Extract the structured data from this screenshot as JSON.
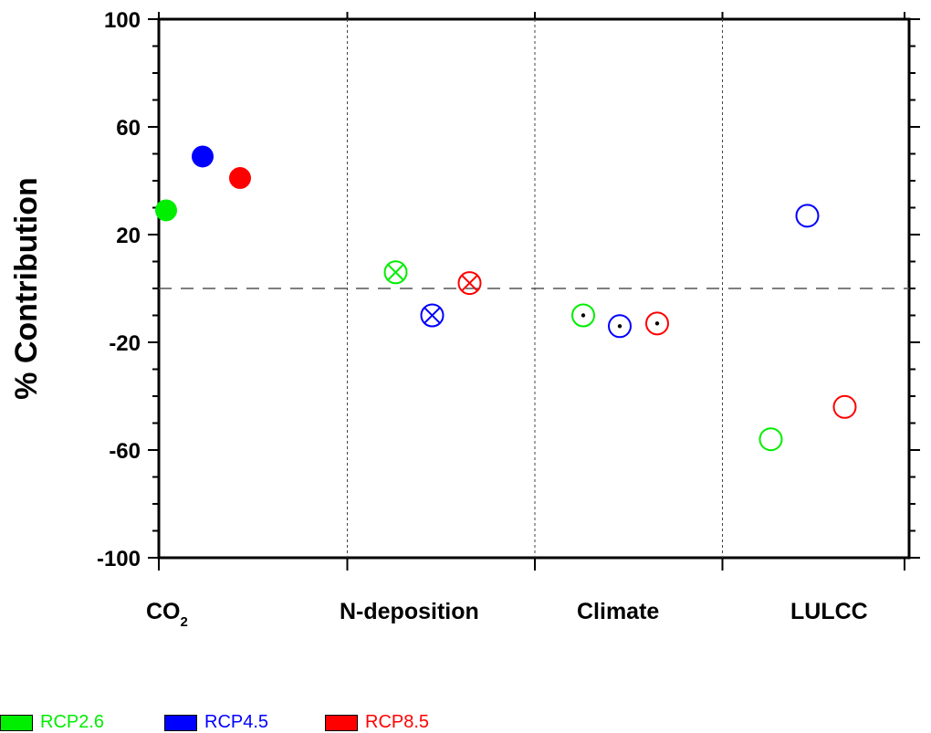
{
  "chart_data": {
    "type": "scatter",
    "title": "",
    "xlabel": "",
    "ylabel": "% Contribution",
    "ylim": [
      -100,
      100
    ],
    "yticks": [
      "100",
      "60",
      "20",
      "-20",
      "-60",
      "-100"
    ],
    "categories": [
      {
        "main": "CO",
        "sub": "2"
      },
      {
        "main": "N-deposition",
        "sub": ""
      },
      {
        "main": "Climate",
        "sub": ""
      },
      {
        "main": "LULCC",
        "sub": ""
      }
    ],
    "zero_line": "dashed",
    "category_separators": "dotted",
    "series": [
      {
        "name": "RCP2.6",
        "color": "#00ee00",
        "values": [
          29,
          6,
          -10,
          -56
        ]
      },
      {
        "name": "RCP4.5",
        "color": "#0000ff",
        "values": [
          49,
          -10,
          -14,
          27
        ]
      },
      {
        "name": "RCP8.5",
        "color": "#ff0000",
        "values": [
          41,
          2,
          -13,
          -44
        ]
      }
    ],
    "marker_styles": [
      "filled-circle",
      "circle-cross",
      "circle-dot",
      "open-circle"
    ],
    "legend_placement": "bottom-left"
  }
}
